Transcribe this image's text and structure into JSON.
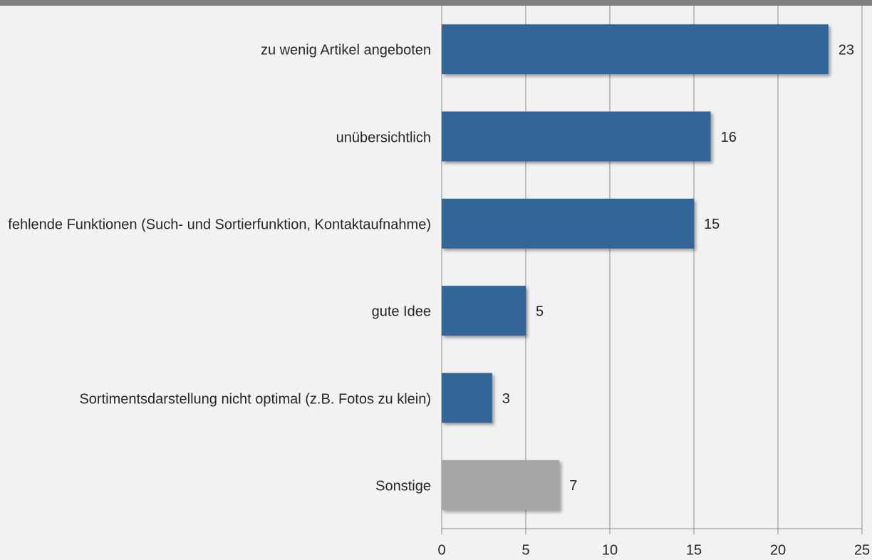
{
  "chart_data": {
    "type": "barh",
    "categories": [
      "zu wenig Artikel angeboten",
      "unübersichtlich",
      "fehlende Funktionen (Such- und Sortierfunktion, Kontaktaufnahme)",
      "gute Idee",
      "Sortimentsdarstellung nicht optimal (z.B. Fotos zu klein)",
      "Sonstige"
    ],
    "values": [
      23,
      16,
      15,
      5,
      3,
      7
    ],
    "colors": [
      "#336699",
      "#336699",
      "#336699",
      "#336699",
      "#336699",
      "#a6a6a6"
    ],
    "xlim": [
      0,
      25
    ],
    "xticks": [
      0,
      5,
      10,
      15,
      20,
      25
    ],
    "grid": true
  }
}
